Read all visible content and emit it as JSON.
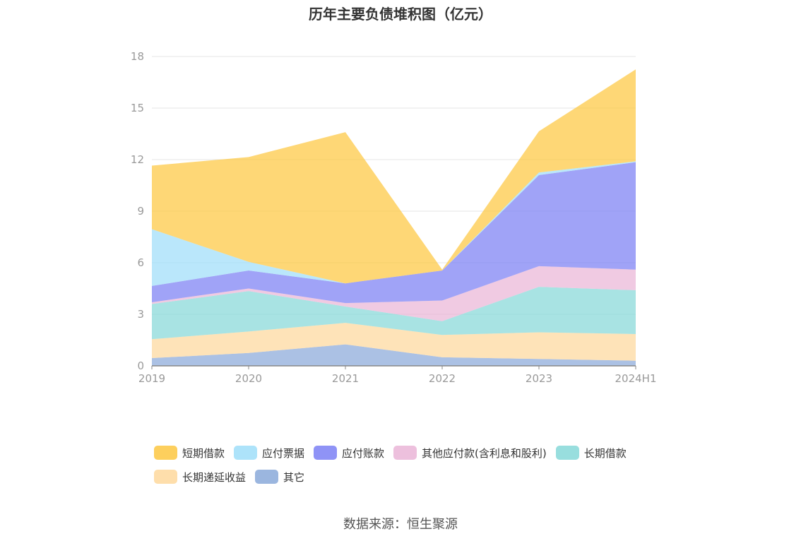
{
  "chart_data": {
    "type": "area",
    "stacked": true,
    "title": "历年主要负债堆积图（亿元）",
    "xlabel": "",
    "ylabel": "",
    "categories": [
      "2019",
      "2020",
      "2021",
      "2022",
      "2023",
      "2024H1"
    ],
    "ylim": [
      0,
      18
    ],
    "yticks": [
      0,
      3,
      6,
      9,
      12,
      15,
      18
    ],
    "grid": true,
    "legend_position": "bottom",
    "series": [
      {
        "name": "其它",
        "color": "#8aa9d9",
        "values": [
          0.45,
          0.75,
          1.25,
          0.5,
          0.4,
          0.3
        ]
      },
      {
        "name": "长期递延收益",
        "color": "#fed89c",
        "values": [
          1.1,
          1.25,
          1.25,
          1.3,
          1.55,
          1.55
        ]
      },
      {
        "name": "长期借款",
        "color": "#86d8d8",
        "values": [
          2.05,
          2.35,
          0.95,
          0.8,
          2.65,
          2.55
        ]
      },
      {
        "name": "其他应付款(含利息和股利)",
        "color": "#eab5d7",
        "values": [
          0.1,
          0.15,
          0.2,
          1.2,
          1.2,
          1.2
        ]
      },
      {
        "name": "应付账款",
        "color": "#7b80f4",
        "values": [
          0.95,
          1.05,
          1.15,
          1.75,
          5.3,
          6.25
        ]
      },
      {
        "name": "应付票据",
        "color": "#9fdef9",
        "values": [
          3.3,
          0.5,
          0.0,
          0.0,
          0.15,
          0.05
        ]
      },
      {
        "name": "短期借款",
        "color": "#fdc741",
        "values": [
          3.7,
          6.1,
          8.8,
          0.05,
          2.4,
          5.35
        ]
      }
    ]
  },
  "legend": [
    {
      "name": "短期借款",
      "color": "#fdc741"
    },
    {
      "name": "应付票据",
      "color": "#9fdef9"
    },
    {
      "name": "应付账款",
      "color": "#7b80f4"
    },
    {
      "name": "其他应付款(含利息和股利)",
      "color": "#eab5d7"
    },
    {
      "name": "长期借款",
      "color": "#86d8d8"
    },
    {
      "name": "长期递延收益",
      "color": "#fed89c"
    },
    {
      "name": "其它",
      "color": "#8aa9d9"
    }
  ],
  "source": "数据来源：恒生聚源"
}
